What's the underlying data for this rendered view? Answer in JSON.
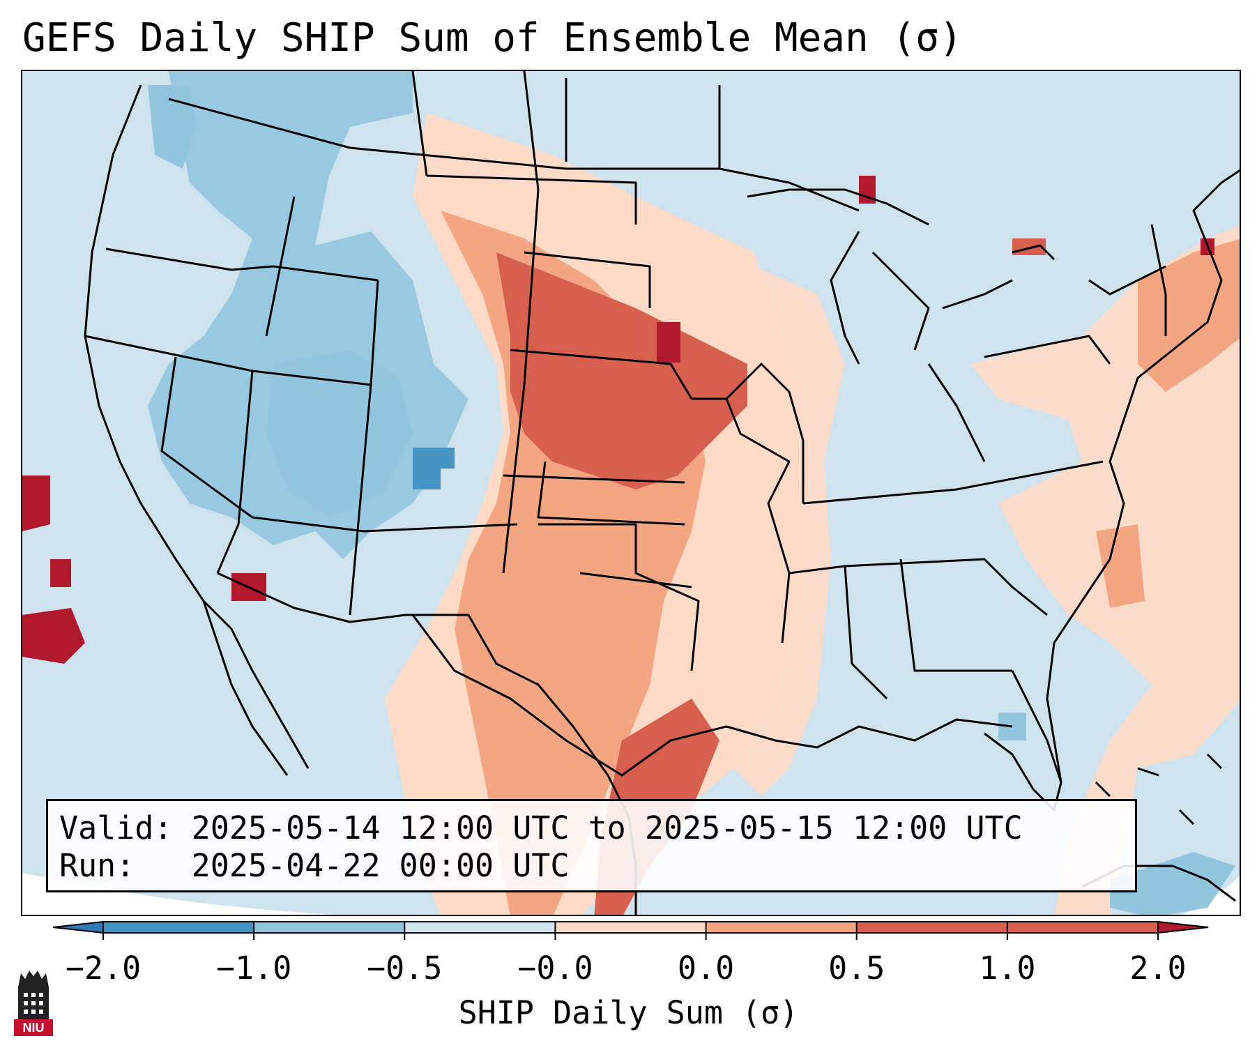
{
  "title": "GEFS Daily SHIP Sum of Ensemble Mean (σ)",
  "info": {
    "valid_line": "Valid: 2025-05-14 12:00 UTC to 2025-05-15 12:00 UTC",
    "run_line": "Run:   2025-04-22 00:00 UTC"
  },
  "colorbar": {
    "label": "SHIP Daily Sum (σ)",
    "ticks": [
      "−2.0",
      "−1.0",
      "−0.5",
      "−0.0",
      "0.0",
      "0.5",
      "1.0",
      "2.0"
    ],
    "colors": [
      "#2f79b5",
      "#4393c3",
      "#92c5de",
      "#d1e5f0",
      "#fddbc7",
      "#f4a582",
      "#d6604d",
      "#b2182b"
    ],
    "extend": "both"
  },
  "map": {
    "projection": "Lambert conformal, CONUS",
    "field_levels": {
      "blue_dark": "#4393c3",
      "blue_mid": "#92c5de",
      "blue_light": "#d1e5f0",
      "red_light": "#fddbc7",
      "red_mid": "#f4a582",
      "red_strong": "#d6604d",
      "red_dark": "#b2182b"
    }
  },
  "logo": {
    "text": "NIU",
    "icon": "university-tower-icon"
  }
}
